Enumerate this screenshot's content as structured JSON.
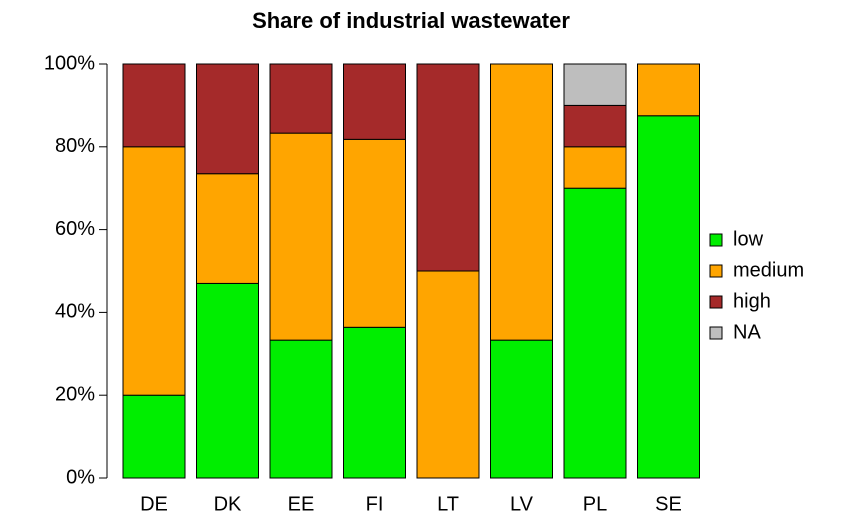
{
  "chart_data": {
    "type": "stacked_bar",
    "title": "Share of industrial wastewater",
    "categories": [
      "DE",
      "DK",
      "EE",
      "FI",
      "LT",
      "LV",
      "PL",
      "SE"
    ],
    "series": [
      {
        "name": "low",
        "color": "#00ee00",
        "values": [
          20,
          47,
          33.3,
          36.4,
          0,
          33.3,
          70,
          87.5
        ]
      },
      {
        "name": "medium",
        "color": "#ffa500",
        "values": [
          60,
          26.5,
          50,
          45.4,
          50,
          66.7,
          10,
          12.5
        ]
      },
      {
        "name": "high",
        "color": "#a52a2a",
        "values": [
          20,
          26.5,
          16.7,
          18.2,
          50,
          0,
          10,
          0
        ]
      },
      {
        "name": "NA",
        "color": "#bebebe",
        "values": [
          0,
          0,
          0,
          0,
          0,
          0,
          10,
          0
        ]
      }
    ],
    "ylim": [
      0,
      100
    ],
    "yticks": [
      {
        "value": 0,
        "label": "0%"
      },
      {
        "value": 20,
        "label": "20%"
      },
      {
        "value": 40,
        "label": "40%"
      },
      {
        "value": 60,
        "label": "60%"
      },
      {
        "value": 80,
        "label": "80%"
      },
      {
        "value": 100,
        "label": "100%"
      }
    ],
    "legend": "right"
  }
}
